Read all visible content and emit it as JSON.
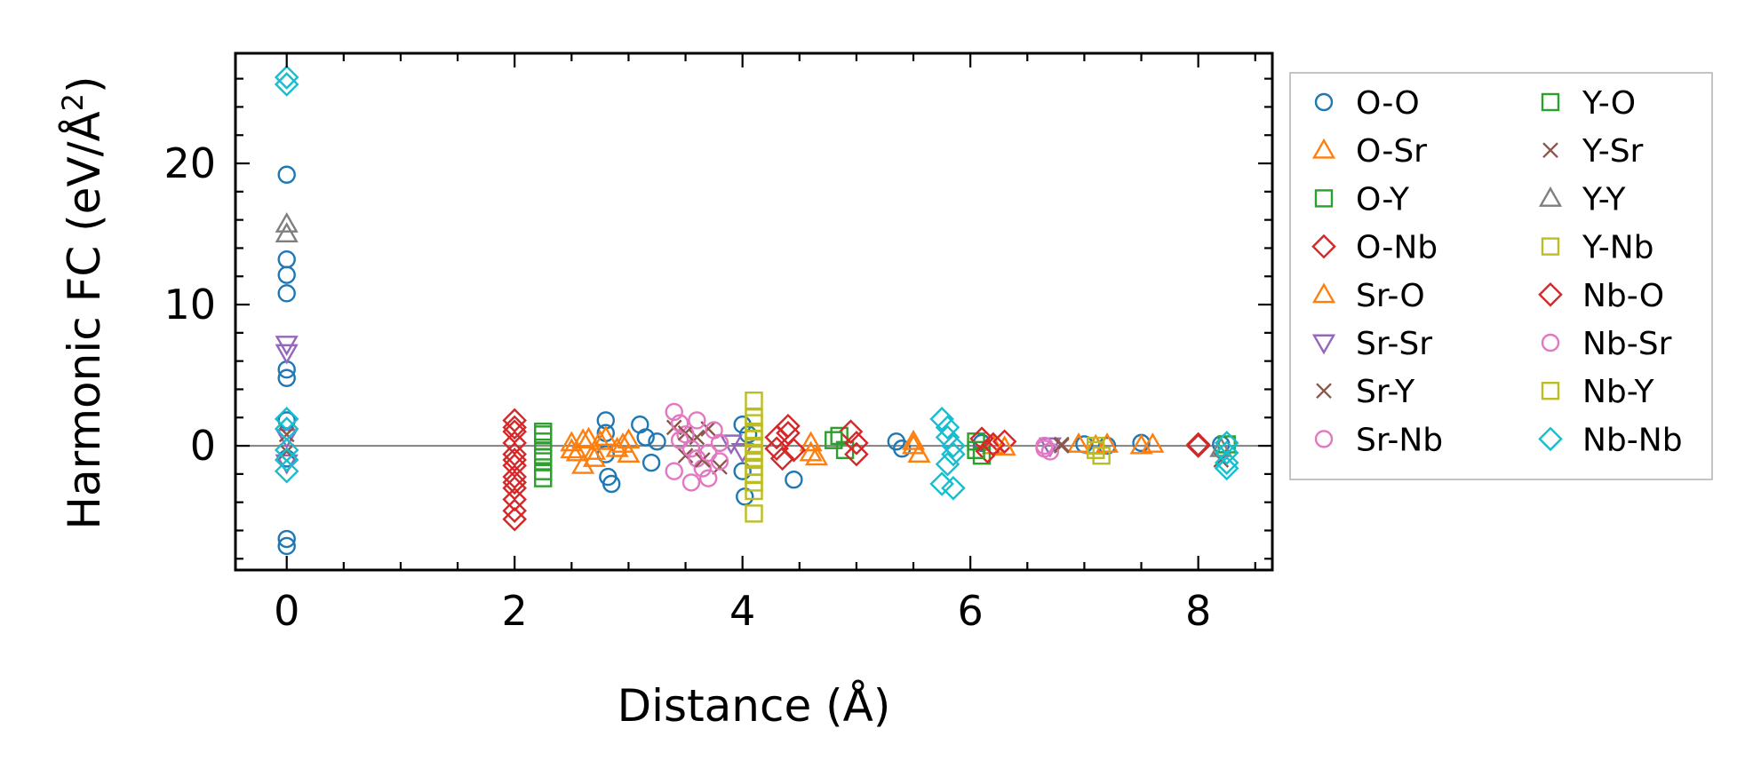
{
  "chart_data": {
    "type": "scatter",
    "xlabel": "Distance (Å)",
    "ylabel_main": "Harmonic FC (eV/Å",
    "ylabel_sup": "2",
    "ylabel_end": ")",
    "xlim": [
      -0.45,
      8.65
    ],
    "ylim": [
      -8.8,
      27.8
    ],
    "x_ticks": [
      0,
      2,
      4,
      6,
      8
    ],
    "x_tick_labels": [
      "0",
      "2",
      "4",
      "6",
      "8"
    ],
    "y_ticks": [
      0,
      10,
      20
    ],
    "y_tick_labels": [
      "0",
      "10",
      "20"
    ],
    "hline": 0,
    "legend_position": "outside-right",
    "series": [
      {
        "name": "O-O",
        "marker": "circle",
        "color": "#1f77b4",
        "points": [
          [
            0,
            19.2
          ],
          [
            0,
            13.2
          ],
          [
            0,
            12.1
          ],
          [
            0,
            10.8
          ],
          [
            0,
            5.4
          ],
          [
            0,
            4.8
          ],
          [
            0,
            1.8
          ],
          [
            0,
            -0.9
          ],
          [
            0,
            -6.6
          ],
          [
            0,
            -7.1
          ],
          [
            2.8,
            1.8
          ],
          [
            2.8,
            0.9
          ],
          [
            2.8,
            -0.6
          ],
          [
            2.82,
            -2.2
          ],
          [
            2.85,
            -2.7
          ],
          [
            3.1,
            1.5
          ],
          [
            3.15,
            0.6
          ],
          [
            3.2,
            -1.2
          ],
          [
            3.25,
            0.3
          ],
          [
            4.0,
            1.5
          ],
          [
            4.0,
            -1.8
          ],
          [
            4.02,
            -3.6
          ],
          [
            4.05,
            0.8
          ],
          [
            4.45,
            -2.4
          ],
          [
            5.35,
            0.3
          ],
          [
            5.4,
            -0.2
          ],
          [
            6.1,
            0.2
          ],
          [
            7.0,
            0.1
          ],
          [
            7.2,
            0.0
          ],
          [
            7.5,
            0.2
          ],
          [
            8.2,
            0.1
          ]
        ]
      },
      {
        "name": "O-Sr",
        "marker": "triangle-up",
        "color": "#ff7f0e",
        "points": [
          [
            2.5,
            0.2
          ],
          [
            2.55,
            -0.5
          ],
          [
            2.6,
            -1.4
          ],
          [
            2.65,
            0.5
          ],
          [
            2.7,
            -0.4
          ],
          [
            2.75,
            0.3
          ],
          [
            2.95,
            0.1
          ],
          [
            3.0,
            -0.6
          ],
          [
            4.6,
            0.2
          ],
          [
            4.65,
            -0.8
          ],
          [
            5.5,
            0.0
          ],
          [
            5.55,
            -0.6
          ],
          [
            6.2,
            0.0
          ],
          [
            6.95,
            0.1
          ],
          [
            7.2,
            0.1
          ],
          [
            7.5,
            0.0
          ]
        ]
      },
      {
        "name": "O-Y",
        "marker": "square",
        "color": "#2ca02c",
        "points": [
          [
            2.25,
            1.0
          ],
          [
            2.25,
            0.3
          ],
          [
            2.25,
            -0.4
          ],
          [
            2.25,
            -1.1
          ],
          [
            2.25,
            -1.8
          ],
          [
            2.25,
            -2.3
          ],
          [
            4.85,
            0.7
          ],
          [
            4.9,
            -0.3
          ],
          [
            6.05,
            0.3
          ],
          [
            6.1,
            -0.7
          ],
          [
            8.25,
            0.1
          ]
        ]
      },
      {
        "name": "O-Nb",
        "marker": "diamond",
        "color": "#d62728",
        "points": [
          [
            2.0,
            1.8
          ],
          [
            2.0,
            1.0
          ],
          [
            2.0,
            0.2
          ],
          [
            2.0,
            -0.6
          ],
          [
            2.0,
            -1.4
          ],
          [
            2.0,
            -2.2
          ],
          [
            2.0,
            -3.0
          ],
          [
            2.0,
            -3.8
          ],
          [
            2.0,
            -4.6
          ],
          [
            2.0,
            -5.2
          ],
          [
            4.3,
            0.6
          ],
          [
            4.35,
            -0.9
          ],
          [
            4.4,
            1.4
          ],
          [
            4.45,
            -0.3
          ],
          [
            4.95,
            1.0
          ],
          [
            5.0,
            -0.6
          ],
          [
            6.1,
            0.5
          ],
          [
            6.15,
            -0.4
          ],
          [
            6.3,
            0.3
          ],
          [
            8.0,
            0.1
          ]
        ]
      },
      {
        "name": "Sr-O",
        "marker": "triangle-up",
        "color": "#ff7f0e",
        "points": [
          [
            2.5,
            -0.3
          ],
          [
            2.6,
            0.4
          ],
          [
            2.7,
            -0.9
          ],
          [
            2.8,
            0.6
          ],
          [
            2.9,
            -0.2
          ],
          [
            3.0,
            0.4
          ],
          [
            4.6,
            -0.5
          ],
          [
            5.5,
            0.3
          ],
          [
            6.3,
            -0.1
          ],
          [
            7.1,
            0.0
          ],
          [
            7.6,
            0.1
          ]
        ]
      },
      {
        "name": "Sr-Sr",
        "marker": "triangle-down",
        "color": "#9467bd",
        "points": [
          [
            0,
            7.2
          ],
          [
            0,
            6.6
          ],
          [
            0,
            0.6
          ],
          [
            0,
            -1.2
          ],
          [
            3.9,
            0.2
          ],
          [
            4.0,
            -0.4
          ],
          [
            6.7,
            0.0
          ]
        ]
      },
      {
        "name": "Sr-Y",
        "marker": "x",
        "color": "#8c564b",
        "points": [
          [
            0,
            0.8
          ],
          [
            3.4,
            1.3
          ],
          [
            3.5,
            -0.7
          ],
          [
            3.6,
            0.6
          ],
          [
            3.7,
            1.2
          ],
          [
            3.8,
            -1.5
          ],
          [
            6.8,
            0.0
          ],
          [
            8.2,
            -1.0
          ]
        ]
      },
      {
        "name": "Sr-Nb",
        "marker": "circle",
        "color": "#e377c2",
        "points": [
          [
            3.4,
            2.4
          ],
          [
            3.45,
            1.6
          ],
          [
            3.5,
            0.8
          ],
          [
            3.55,
            -0.2
          ],
          [
            3.6,
            -0.9
          ],
          [
            3.65,
            -1.6
          ],
          [
            3.7,
            -2.3
          ],
          [
            3.75,
            1.1
          ],
          [
            3.8,
            0.2
          ],
          [
            3.4,
            -1.8
          ],
          [
            3.55,
            -2.6
          ],
          [
            6.65,
            0.0
          ],
          [
            6.7,
            -0.4
          ]
        ]
      },
      {
        "name": "Y-O",
        "marker": "square",
        "color": "#2ca02c",
        "points": [
          [
            2.25,
            0.8
          ],
          [
            2.25,
            -0.8
          ],
          [
            4.8,
            0.4
          ],
          [
            6.05,
            -0.3
          ]
        ]
      },
      {
        "name": "Y-Sr",
        "marker": "x",
        "color": "#8c564b",
        "points": [
          [
            0,
            -0.4
          ],
          [
            3.5,
            0.9
          ],
          [
            3.65,
            -1.0
          ],
          [
            6.8,
            0.1
          ]
        ]
      },
      {
        "name": "Y-Y",
        "marker": "triangle-up",
        "color": "#7f7f7f",
        "points": [
          [
            0,
            15.7
          ],
          [
            0,
            15.0
          ],
          [
            8.2,
            -0.2
          ]
        ]
      },
      {
        "name": "Y-Nb",
        "marker": "square",
        "color": "#bcbd22",
        "points": [
          [
            4.1,
            3.2
          ],
          [
            4.1,
            2.0
          ],
          [
            4.1,
            1.0
          ],
          [
            4.1,
            0.0
          ],
          [
            4.1,
            -1.0
          ],
          [
            4.1,
            -2.0
          ],
          [
            4.1,
            -3.2
          ],
          [
            4.1,
            -4.8
          ],
          [
            7.1,
            0.0
          ],
          [
            7.15,
            -0.7
          ]
        ]
      },
      {
        "name": "Nb-O",
        "marker": "diamond",
        "color": "#d62728",
        "points": [
          [
            2.0,
            1.3
          ],
          [
            2.0,
            -1.0
          ],
          [
            2.0,
            -2.6
          ],
          [
            4.3,
            -0.2
          ],
          [
            4.4,
            0.9
          ],
          [
            5.0,
            0.2
          ],
          [
            6.2,
            0.1
          ],
          [
            8.0,
            0.0
          ]
        ]
      },
      {
        "name": "Nb-Sr",
        "marker": "circle",
        "color": "#e377c2",
        "points": [
          [
            3.45,
            0.4
          ],
          [
            3.6,
            1.8
          ],
          [
            3.7,
            -0.5
          ],
          [
            3.8,
            -1.1
          ],
          [
            6.65,
            -0.2
          ]
        ]
      },
      {
        "name": "Nb-Y",
        "marker": "square",
        "color": "#bcbd22",
        "points": [
          [
            4.1,
            1.6
          ],
          [
            4.1,
            0.5
          ],
          [
            4.1,
            -0.5
          ],
          [
            4.1,
            -1.5
          ],
          [
            4.1,
            -2.6
          ],
          [
            7.1,
            -0.3
          ]
        ]
      },
      {
        "name": "Nb-Nb",
        "marker": "diamond",
        "color": "#17becf",
        "points": [
          [
            0,
            26.1
          ],
          [
            0,
            25.6
          ],
          [
            0,
            1.9
          ],
          [
            0,
            1.2
          ],
          [
            0,
            -0.3
          ],
          [
            0,
            -1.0
          ],
          [
            0,
            -1.8
          ],
          [
            5.75,
            1.9
          ],
          [
            5.8,
            1.3
          ],
          [
            5.8,
            0.6
          ],
          [
            5.85,
            0.0
          ],
          [
            5.85,
            -0.6
          ],
          [
            5.8,
            -1.3
          ],
          [
            5.75,
            -2.7
          ],
          [
            5.85,
            -3.0
          ],
          [
            8.25,
            0.2
          ],
          [
            8.25,
            -0.5
          ],
          [
            8.25,
            -1.2
          ],
          [
            8.25,
            -1.6
          ]
        ]
      }
    ]
  }
}
